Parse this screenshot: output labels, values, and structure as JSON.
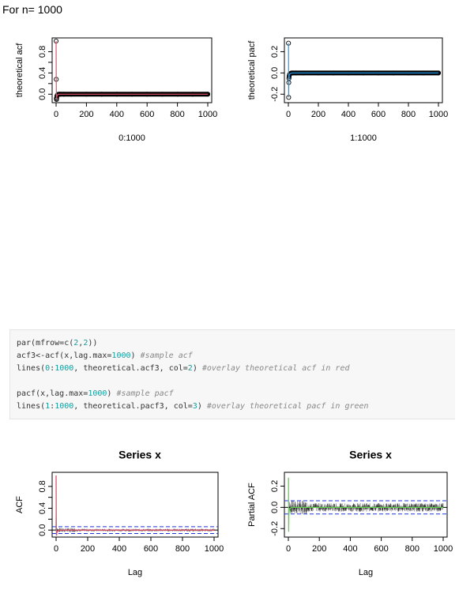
{
  "heading": "For n= 1000",
  "code_lines": [
    [
      {
        "t": "par(mfrow=c("
      },
      {
        "t": "2",
        "k": "num"
      },
      {
        "t": ","
      },
      {
        "t": "2",
        "k": "num"
      },
      {
        "t": "))"
      }
    ],
    [
      {
        "t": "acf3<-acf(x,lag.max="
      },
      {
        "t": "1000",
        "k": "num"
      },
      {
        "t": ") "
      },
      {
        "t": "#sample acf",
        "k": "cmt"
      }
    ],
    [
      {
        "t": "lines("
      },
      {
        "t": "0",
        "k": "num"
      },
      {
        "t": ":"
      },
      {
        "t": "1000",
        "k": "num"
      },
      {
        "t": ", theoretical.acf3, col="
      },
      {
        "t": "2",
        "k": "num"
      },
      {
        "t": ") "
      },
      {
        "t": "#overlay theoretical acf in red",
        "k": "cmt"
      }
    ],
    [],
    [
      {
        "t": "pacf(x,lag.max="
      },
      {
        "t": "1000",
        "k": "num"
      },
      {
        "t": ") "
      },
      {
        "t": "#sample pacf",
        "k": "cmt"
      }
    ],
    [
      {
        "t": "lines("
      },
      {
        "t": "1",
        "k": "num"
      },
      {
        "t": ":"
      },
      {
        "t": "1000",
        "k": "num"
      },
      {
        "t": ", theoretical.pacf3, col="
      },
      {
        "t": "3",
        "k": "num"
      },
      {
        "t": ") "
      },
      {
        "t": "#overlay theoretical pacf in green",
        "k": "cmt"
      }
    ]
  ],
  "chart_data": [
    {
      "type": "line",
      "title": "",
      "xlabel": "0:1000",
      "ylabel": "theoretical acf",
      "xlim": [
        0,
        1000
      ],
      "ylim": [
        -0.1,
        1.0
      ],
      "xticks": [
        0,
        200,
        400,
        600,
        800,
        1000
      ],
      "yticks": [
        0.0,
        0.2,
        0.4,
        0.6,
        0.8
      ],
      "ytick_labels": [
        "0.0",
        "0.4",
        "0.8"
      ],
      "line_color": "#df536b",
      "series": [
        {
          "style": "points",
          "x": [
            0,
            1,
            2,
            3,
            4,
            5,
            6,
            8,
            10,
            12,
            15,
            20,
            30,
            50,
            100,
            200,
            300,
            400,
            500,
            600,
            700,
            800,
            900,
            1000
          ],
          "y": [
            1.0,
            0.28,
            -0.08,
            -0.1,
            -0.07,
            -0.04,
            -0.03,
            -0.02,
            -0.01,
            -0.005,
            -0.002,
            0,
            0,
            0,
            0,
            0,
            0,
            0,
            0,
            0,
            0,
            0,
            0,
            0
          ]
        },
        {
          "style": "line",
          "x": [
            0,
            1,
            2,
            3,
            4,
            5,
            6,
            8,
            10,
            12,
            15,
            20,
            30,
            50,
            100,
            200,
            400,
            600,
            800,
            1000
          ],
          "y": [
            1.0,
            0.28,
            -0.08,
            -0.1,
            -0.07,
            -0.04,
            -0.03,
            -0.02,
            -0.01,
            -0.005,
            -0.002,
            0,
            0,
            0,
            0,
            0,
            0,
            0,
            0,
            0
          ]
        }
      ]
    },
    {
      "type": "line",
      "title": "",
      "xlabel": "1:1000",
      "ylabel": "theoretical pacf",
      "xlim": [
        0,
        1000
      ],
      "ylim": [
        -0.25,
        0.3
      ],
      "xticks": [
        0,
        200,
        400,
        600,
        800,
        1000
      ],
      "yticks": [
        -0.2,
        0.0,
        0.2
      ],
      "ytick_labels": [
        "-0.2",
        "0.0",
        "0.2"
      ],
      "line_color": "#2297e6",
      "series": [
        {
          "style": "points",
          "x": [
            1,
            2,
            3,
            4,
            5,
            6,
            8,
            10,
            12,
            15,
            20,
            30,
            50,
            100,
            200,
            300,
            400,
            500,
            600,
            700,
            800,
            900,
            1000
          ],
          "y": [
            0.28,
            -0.23,
            -0.09,
            -0.05,
            -0.035,
            -0.025,
            -0.015,
            -0.01,
            -0.007,
            -0.004,
            -0.002,
            0,
            0,
            0,
            0,
            0,
            0,
            0,
            0,
            0,
            0,
            0,
            0
          ]
        },
        {
          "style": "line",
          "x": [
            1,
            2,
            3,
            4,
            5,
            6,
            8,
            10,
            12,
            15,
            20,
            30,
            50,
            100,
            200,
            400,
            600,
            800,
            1000
          ],
          "y": [
            0.28,
            -0.23,
            -0.09,
            -0.05,
            -0.035,
            -0.025,
            -0.015,
            -0.01,
            -0.007,
            -0.004,
            -0.002,
            0,
            0,
            0,
            0,
            0,
            0,
            0,
            0
          ]
        }
      ]
    },
    {
      "type": "bar",
      "title": "Series  x",
      "xlabel": "Lag",
      "ylabel": "ACF",
      "xlim": [
        0,
        1000
      ],
      "ylim": [
        -0.07,
        1.0
      ],
      "xticks": [
        0,
        200,
        400,
        600,
        800,
        1000
      ],
      "yticks": [
        0.0,
        0.2,
        0.4,
        0.6,
        0.8
      ],
      "ytick_labels": [
        "0.0",
        "0.4",
        "0.8"
      ],
      "ci": [
        0.062,
        -0.062
      ],
      "line_color": "#df536b",
      "noise_amplitude": 0.03,
      "spike": {
        "x": 0,
        "y": 1.0
      },
      "overlay_x": [
        0,
        1,
        2,
        3,
        4,
        5,
        10,
        20,
        1000
      ],
      "overlay_y": [
        1.0,
        0.28,
        -0.08,
        -0.1,
        -0.07,
        -0.04,
        -0.01,
        0,
        0
      ]
    },
    {
      "type": "bar",
      "title": "Series  x",
      "xlabel": "Lag",
      "ylabel": "Partial ACF",
      "xlim": [
        0,
        1000
      ],
      "ylim": [
        -0.25,
        0.3
      ],
      "xticks": [
        0,
        200,
        400,
        600,
        800,
        1000
      ],
      "yticks": [
        -0.2,
        0.0,
        0.2
      ],
      "ytick_labels": [
        "-0.2",
        "0.0",
        "0.2"
      ],
      "ci": [
        0.062,
        -0.062
      ],
      "line_color": "#61d04f",
      "noise_amplitude": 0.05,
      "overlay_x": [
        1,
        2,
        3,
        4,
        6,
        10,
        20,
        1000
      ],
      "overlay_y": [
        0.28,
        -0.23,
        -0.09,
        -0.05,
        -0.025,
        -0.01,
        0,
        0
      ]
    }
  ]
}
